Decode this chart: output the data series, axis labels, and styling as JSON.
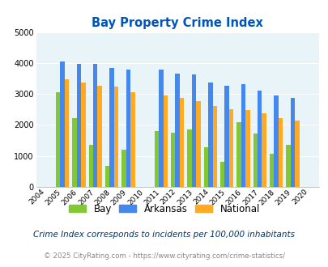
{
  "title": "Bay Property Crime Index",
  "subtitle": "Crime Index corresponds to incidents per 100,000 inhabitants",
  "footer": "© 2025 CityRating.com - https://www.cityrating.com/crime-statistics/",
  "years": [
    2004,
    2005,
    2006,
    2007,
    2008,
    2009,
    2010,
    2011,
    2012,
    2013,
    2014,
    2015,
    2016,
    2017,
    2018,
    2019,
    2020
  ],
  "bay": [
    null,
    3050,
    2230,
    1350,
    680,
    1200,
    null,
    1800,
    1760,
    1850,
    1280,
    800,
    2100,
    1720,
    1080,
    1350,
    null
  ],
  "arkansas": [
    null,
    4050,
    3980,
    3980,
    3840,
    3780,
    null,
    3780,
    3670,
    3620,
    3370,
    3260,
    3310,
    3100,
    2960,
    2880,
    null
  ],
  "national": [
    null,
    3470,
    3360,
    3270,
    3230,
    3060,
    null,
    2940,
    2880,
    2760,
    2620,
    2510,
    2480,
    2380,
    2230,
    2150,
    null
  ],
  "bar_colors_bay": "#82c832",
  "bar_colors_ark": "#4488ee",
  "bar_colors_nat": "#ffaa22",
  "bg_color": "#e8f4f8",
  "ylim": [
    0,
    5000
  ],
  "yticks": [
    0,
    1000,
    2000,
    3000,
    4000,
    5000
  ],
  "title_color": "#0055bb",
  "subtitle_color": "#003366",
  "footer_color": "#888888",
  "footer_link_color": "#3399cc"
}
